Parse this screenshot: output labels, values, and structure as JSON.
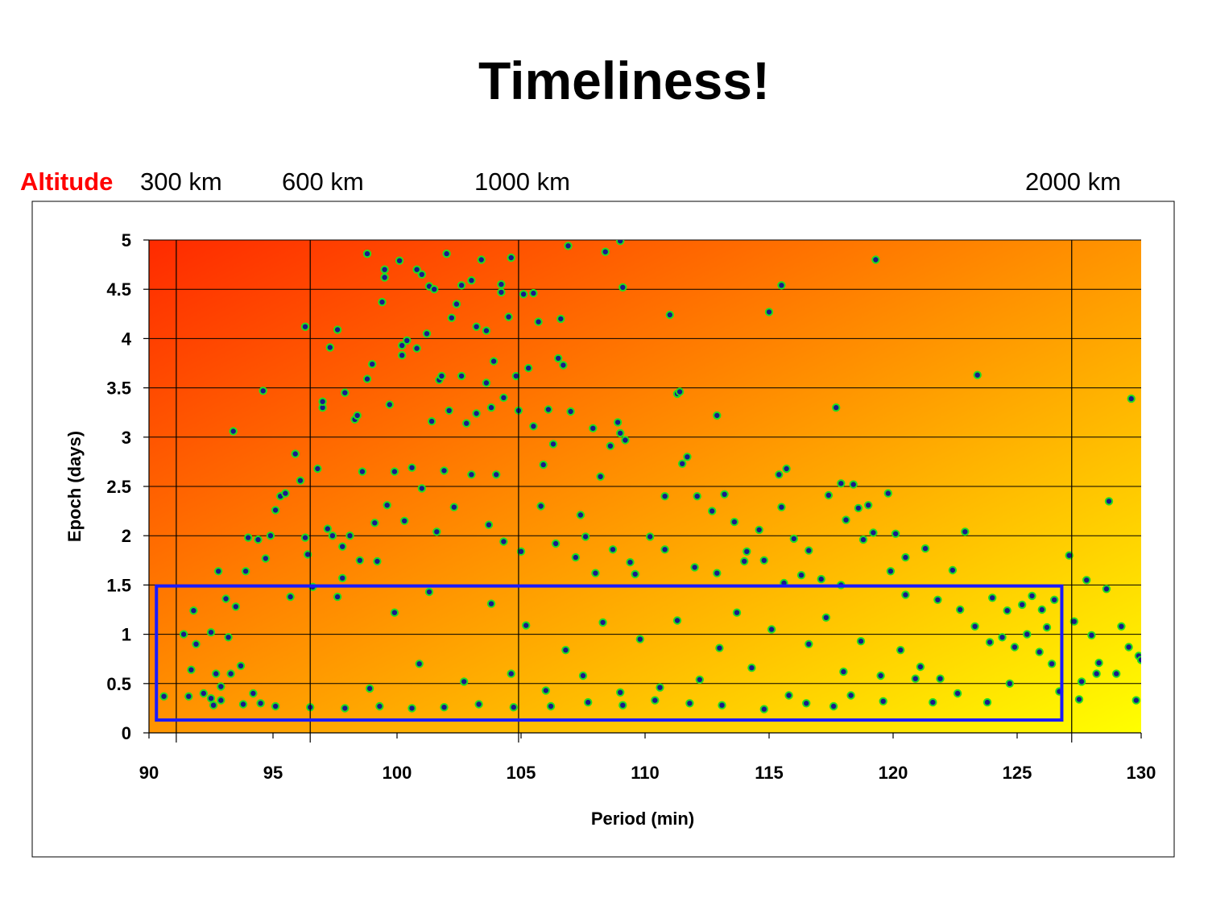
{
  "slide": {
    "title": "Timeliness!"
  },
  "altitude": {
    "caption": "Altitude",
    "markers": [
      {
        "label": "300 km",
        "period": 91.1
      },
      {
        "label": "600 km",
        "period": 96.5
      },
      {
        "label": "1000 km",
        "period": 104.9
      },
      {
        "label": "2000 km",
        "period": 127.2
      }
    ]
  },
  "chart_data": {
    "type": "scatter",
    "title": "",
    "xlabel": "Period (min)",
    "ylabel": "Epoch (days)",
    "xlim": [
      90,
      130
    ],
    "ylim": [
      0,
      5
    ],
    "x_ticks": [
      90,
      95,
      100,
      105,
      110,
      115,
      120,
      125,
      130
    ],
    "y_ticks": [
      0,
      0.5,
      1,
      1.5,
      2,
      2.5,
      3,
      3.5,
      4,
      4.5,
      5
    ],
    "y_tick_labels": [
      "0",
      "0.5",
      "1",
      "1.5",
      "2",
      "2.5",
      "3",
      "3.5",
      "4",
      "4.5",
      "5"
    ],
    "grid": true,
    "background": {
      "gradient_from": "#ff2a00",
      "gradient_to": "#ffff00"
    },
    "marker": {
      "fill": "#1a1a8c",
      "edge": "#22dd22"
    },
    "highlight_box": {
      "x": [
        90.3,
        126.8
      ],
      "y": [
        0.13,
        1.49
      ],
      "color": "#1a1aff"
    },
    "points": [
      [
        90.6,
        0.37
      ],
      [
        91.4,
        1.0
      ],
      [
        91.6,
        0.37
      ],
      [
        91.7,
        0.64
      ],
      [
        91.8,
        1.24
      ],
      [
        91.9,
        0.9
      ],
      [
        92.2,
        0.4
      ],
      [
        92.5,
        0.35
      ],
      [
        92.5,
        1.02
      ],
      [
        92.6,
        0.28
      ],
      [
        92.7,
        0.6
      ],
      [
        92.8,
        1.64
      ],
      [
        92.9,
        0.47
      ],
      [
        93.1,
        1.36
      ],
      [
        93.2,
        0.97
      ],
      [
        93.3,
        0.6
      ],
      [
        93.4,
        3.06
      ],
      [
        93.5,
        1.28
      ],
      [
        93.7,
        0.68
      ],
      [
        93.9,
        1.64
      ],
      [
        94.0,
        1.98
      ],
      [
        94.2,
        0.4
      ],
      [
        94.4,
        1.96
      ],
      [
        94.5,
        0.3
      ],
      [
        94.6,
        3.47
      ],
      [
        94.7,
        1.77
      ],
      [
        94.9,
        2.0
      ],
      [
        95.1,
        2.26
      ],
      [
        95.3,
        2.4
      ],
      [
        95.5,
        2.43
      ],
      [
        95.7,
        1.38
      ],
      [
        95.9,
        2.83
      ],
      [
        96.1,
        2.56
      ],
      [
        96.3,
        1.98
      ],
      [
        96.4,
        1.81
      ],
      [
        96.6,
        1.48
      ],
      [
        96.8,
        2.68
      ],
      [
        96.3,
        4.12
      ],
      [
        97.0,
        3.3
      ],
      [
        97.0,
        3.36
      ],
      [
        97.2,
        2.07
      ],
      [
        97.3,
        3.91
      ],
      [
        97.4,
        2.0
      ],
      [
        97.6,
        4.09
      ],
      [
        97.6,
        1.38
      ],
      [
        97.8,
        1.89
      ],
      [
        97.9,
        3.45
      ],
      [
        98.1,
        2.0
      ],
      [
        98.3,
        3.18
      ],
      [
        98.4,
        3.22
      ],
      [
        98.6,
        2.65
      ],
      [
        98.8,
        4.86
      ],
      [
        98.8,
        3.59
      ],
      [
        99.0,
        3.74
      ],
      [
        99.2,
        1.74
      ],
      [
        99.4,
        4.37
      ],
      [
        99.5,
        4.62
      ],
      [
        99.5,
        4.7
      ],
      [
        99.7,
        3.33
      ],
      [
        99.9,
        2.65
      ],
      [
        100.1,
        4.79
      ],
      [
        100.2,
        3.93
      ],
      [
        100.2,
        3.83
      ],
      [
        100.4,
        3.98
      ],
      [
        100.6,
        2.69
      ],
      [
        100.8,
        4.7
      ],
      [
        100.8,
        3.9
      ],
      [
        101.0,
        4.65
      ],
      [
        101.2,
        4.05
      ],
      [
        101.3,
        4.53
      ],
      [
        101.4,
        3.16
      ],
      [
        101.5,
        4.5
      ],
      [
        101.7,
        3.58
      ],
      [
        101.8,
        3.62
      ],
      [
        101.9,
        2.66
      ],
      [
        102.0,
        4.86
      ],
      [
        102.1,
        3.27
      ],
      [
        102.2,
        4.21
      ],
      [
        102.4,
        4.35
      ],
      [
        102.6,
        4.54
      ],
      [
        102.6,
        3.62
      ],
      [
        102.8,
        3.14
      ],
      [
        103.0,
        4.59
      ],
      [
        103.2,
        3.24
      ],
      [
        103.2,
        4.12
      ],
      [
        103.4,
        4.8
      ],
      [
        103.6,
        3.55
      ],
      [
        103.6,
        4.08
      ],
      [
        103.8,
        3.3
      ],
      [
        103.9,
        3.77
      ],
      [
        104.0,
        2.62
      ],
      [
        104.2,
        4.47
      ],
      [
        104.2,
        4.55
      ],
      [
        104.3,
        3.4
      ],
      [
        104.5,
        4.22
      ],
      [
        104.6,
        4.82
      ],
      [
        104.8,
        3.62
      ],
      [
        104.9,
        3.27
      ],
      [
        105.1,
        4.45
      ],
      [
        105.3,
        3.7
      ],
      [
        105.5,
        4.46
      ],
      [
        105.5,
        3.11
      ],
      [
        105.7,
        4.17
      ],
      [
        105.9,
        2.72
      ],
      [
        106.1,
        3.28
      ],
      [
        106.3,
        2.93
      ],
      [
        106.5,
        3.8
      ],
      [
        106.6,
        4.2
      ],
      [
        106.7,
        3.73
      ],
      [
        106.9,
        4.94
      ],
      [
        107.0,
        3.26
      ],
      [
        107.4,
        2.21
      ],
      [
        107.6,
        1.99
      ],
      [
        107.9,
        3.09
      ],
      [
        108.2,
        2.6
      ],
      [
        108.4,
        4.88
      ],
      [
        108.6,
        2.91
      ],
      [
        108.9,
        3.15
      ],
      [
        109.0,
        4.99
      ],
      [
        109.0,
        3.04
      ],
      [
        109.1,
        4.52
      ],
      [
        109.2,
        2.97
      ],
      [
        109.4,
        1.73
      ],
      [
        110.2,
        1.99
      ],
      [
        110.8,
        2.4
      ],
      [
        111.0,
        4.24
      ],
      [
        111.3,
        3.44
      ],
      [
        111.4,
        3.46
      ],
      [
        111.5,
        2.73
      ],
      [
        111.7,
        2.8
      ],
      [
        112.1,
        2.4
      ],
      [
        112.7,
        2.25
      ],
      [
        112.9,
        3.22
      ],
      [
        113.2,
        2.42
      ],
      [
        113.6,
        2.14
      ],
      [
        114.0,
        1.74
      ],
      [
        114.6,
        2.06
      ],
      [
        115.0,
        4.27
      ],
      [
        115.4,
        2.62
      ],
      [
        115.5,
        2.29
      ],
      [
        115.5,
        4.54
      ],
      [
        115.7,
        2.68
      ],
      [
        116.0,
        1.97
      ],
      [
        116.6,
        1.85
      ],
      [
        117.4,
        2.41
      ],
      [
        117.7,
        3.3
      ],
      [
        117.9,
        2.53
      ],
      [
        118.1,
        2.16
      ],
      [
        118.4,
        2.52
      ],
      [
        118.6,
        2.28
      ],
      [
        119.0,
        2.31
      ],
      [
        119.2,
        2.03
      ],
      [
        119.3,
        4.8
      ],
      [
        119.8,
        2.43
      ],
      [
        120.1,
        2.02
      ],
      [
        120.5,
        1.78
      ],
      [
        121.3,
        1.87
      ],
      [
        122.4,
        1.65
      ],
      [
        122.9,
        2.04
      ],
      [
        123.4,
        3.63
      ],
      [
        124.0,
        1.37
      ],
      [
        124.4,
        0.97
      ],
      [
        124.9,
        0.87
      ],
      [
        125.2,
        1.3
      ],
      [
        125.6,
        1.39
      ],
      [
        125.9,
        0.82
      ],
      [
        126.2,
        1.07
      ],
      [
        126.4,
        0.7
      ],
      [
        126.7,
        0.42
      ],
      [
        127.1,
        1.8
      ],
      [
        127.3,
        1.13
      ],
      [
        127.6,
        0.52
      ],
      [
        127.8,
        1.55
      ],
      [
        128.0,
        0.99
      ],
      [
        128.3,
        0.71
      ],
      [
        128.6,
        1.46
      ],
      [
        128.7,
        2.35
      ],
      [
        129.0,
        0.6
      ],
      [
        129.2,
        1.08
      ],
      [
        129.5,
        0.87
      ],
      [
        129.6,
        3.39
      ],
      [
        129.8,
        0.33
      ],
      [
        129.9,
        0.78
      ],
      [
        130.0,
        0.74
      ],
      [
        128.2,
        0.6
      ],
      [
        127.5,
        0.34
      ],
      [
        126.0,
        1.25
      ],
      [
        124.7,
        0.5
      ],
      [
        123.8,
        0.31
      ],
      [
        122.6,
        0.4
      ],
      [
        121.6,
        0.31
      ],
      [
        120.9,
        0.55
      ],
      [
        119.6,
        0.32
      ],
      [
        118.3,
        0.38
      ],
      [
        117.6,
        0.27
      ],
      [
        116.5,
        0.3
      ],
      [
        114.8,
        0.24
      ],
      [
        113.1,
        0.28
      ],
      [
        111.8,
        0.3
      ],
      [
        110.4,
        0.33
      ],
      [
        109.1,
        0.28
      ],
      [
        107.7,
        0.31
      ],
      [
        106.2,
        0.27
      ],
      [
        104.7,
        0.26
      ],
      [
        103.3,
        0.29
      ],
      [
        101.9,
        0.26
      ],
      [
        100.6,
        0.25
      ],
      [
        99.3,
        0.27
      ],
      [
        97.9,
        0.25
      ],
      [
        96.5,
        0.26
      ],
      [
        95.1,
        0.27
      ],
      [
        93.8,
        0.29
      ],
      [
        92.9,
        0.33
      ],
      [
        97.8,
        1.57
      ],
      [
        98.5,
        1.75
      ],
      [
        99.1,
        2.13
      ],
      [
        99.6,
        2.31
      ],
      [
        100.3,
        2.15
      ],
      [
        101.0,
        2.48
      ],
      [
        101.6,
        2.04
      ],
      [
        102.3,
        2.29
      ],
      [
        103.0,
        2.62
      ],
      [
        103.7,
        2.11
      ],
      [
        104.3,
        1.94
      ],
      [
        105.0,
        1.84
      ],
      [
        105.8,
        2.3
      ],
      [
        106.4,
        1.92
      ],
      [
        107.2,
        1.78
      ],
      [
        108.0,
        1.62
      ],
      [
        108.7,
        1.86
      ],
      [
        109.6,
        1.61
      ],
      [
        110.8,
        1.86
      ],
      [
        112.0,
        1.68
      ],
      [
        112.9,
        1.62
      ],
      [
        114.1,
        1.84
      ],
      [
        114.8,
        1.75
      ],
      [
        115.6,
        1.52
      ],
      [
        116.3,
        1.6
      ],
      [
        117.1,
        1.56
      ],
      [
        117.9,
        1.5
      ],
      [
        118.8,
        1.96
      ],
      [
        119.9,
        1.64
      ],
      [
        120.5,
        1.4
      ],
      [
        121.8,
        1.35
      ],
      [
        122.7,
        1.25
      ],
      [
        123.3,
        1.08
      ],
      [
        123.9,
        0.92
      ],
      [
        124.6,
        1.24
      ],
      [
        125.4,
        1.0
      ],
      [
        126.5,
        1.35
      ],
      [
        98.9,
        0.45
      ],
      [
        99.9,
        1.22
      ],
      [
        100.9,
        0.7
      ],
      [
        101.3,
        1.43
      ],
      [
        102.7,
        0.52
      ],
      [
        103.8,
        1.31
      ],
      [
        104.6,
        0.6
      ],
      [
        105.2,
        1.09
      ],
      [
        106.0,
        0.43
      ],
      [
        106.8,
        0.84
      ],
      [
        107.5,
        0.58
      ],
      [
        108.3,
        1.12
      ],
      [
        109.0,
        0.41
      ],
      [
        109.8,
        0.95
      ],
      [
        110.6,
        0.46
      ],
      [
        111.3,
        1.14
      ],
      [
        112.2,
        0.54
      ],
      [
        113.0,
        0.86
      ],
      [
        113.7,
        1.22
      ],
      [
        114.3,
        0.66
      ],
      [
        115.1,
        1.05
      ],
      [
        115.8,
        0.38
      ],
      [
        116.6,
        0.9
      ],
      [
        117.3,
        1.17
      ],
      [
        118.0,
        0.62
      ],
      [
        118.7,
        0.93
      ],
      [
        119.5,
        0.58
      ],
      [
        120.3,
        0.84
      ],
      [
        121.1,
        0.67
      ],
      [
        121.9,
        0.55
      ]
    ]
  }
}
